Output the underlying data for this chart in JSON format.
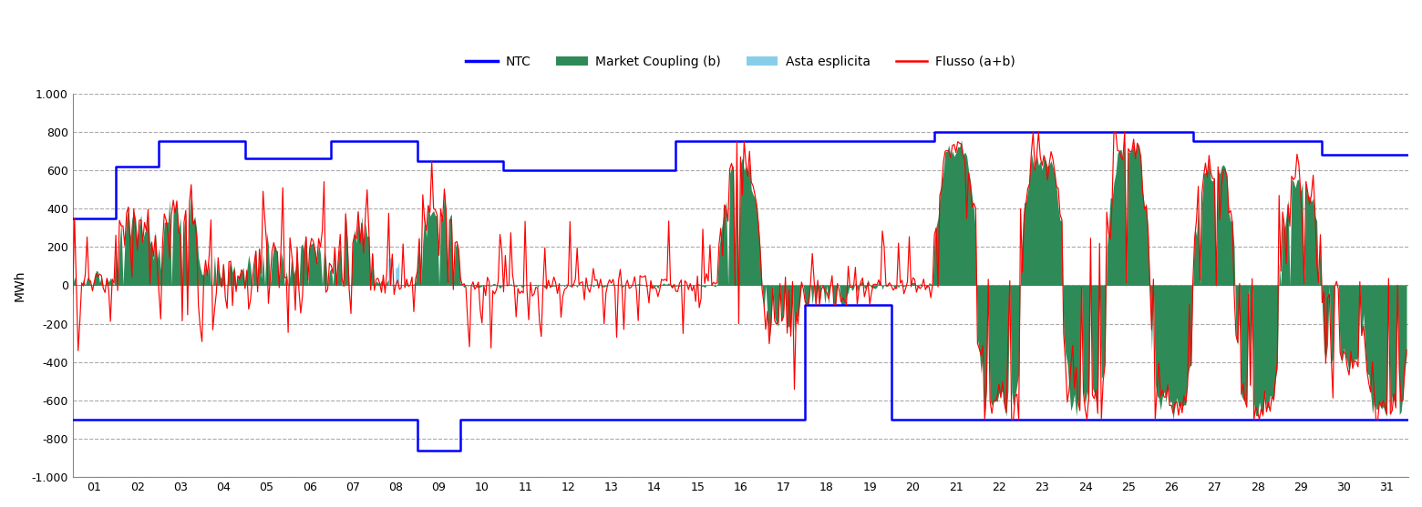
{
  "ylabel": "MWh",
  "ylim": [
    -1000,
    1000
  ],
  "yticks": [
    -1000,
    -800,
    -600,
    -400,
    -200,
    0,
    200,
    400,
    600,
    800,
    1000
  ],
  "ytick_labels": [
    "-1.000",
    "-800",
    "-600",
    "-400",
    "-200",
    "0",
    "200",
    "400",
    "600",
    "800",
    "1.000"
  ],
  "xtick_labels": [
    "01",
    "02",
    "03",
    "04",
    "05",
    "06",
    "07",
    "08",
    "09",
    "10",
    "11",
    "12",
    "13",
    "14",
    "15",
    "16",
    "17",
    "18",
    "19",
    "20",
    "21",
    "22",
    "23",
    "24",
    "25",
    "26",
    "27",
    "28",
    "29",
    "30",
    "31"
  ],
  "colors": {
    "ntc": "#0000FF",
    "market_coupling": "#2E8B57",
    "asta": "#87CEEB",
    "flusso": "#FF0000",
    "grid": "#AAAAAA",
    "background": "#FFFFFF"
  },
  "legend": {
    "ntc_label": "NTC",
    "mc_label": "Market Coupling (b)",
    "asta_label": "Asta esplicita",
    "flusso_label": "Flusso (a+b)"
  },
  "n_days": 31,
  "ntc_pos": [
    350,
    620,
    750,
    750,
    660,
    660,
    750,
    750,
    650,
    650,
    600,
    600,
    600,
    600,
    750,
    750,
    750,
    750,
    750,
    750,
    800,
    800,
    800,
    800,
    800,
    800,
    750,
    750,
    750,
    680,
    680
  ],
  "ntc_neg": [
    -700,
    -700,
    -700,
    -700,
    -700,
    -700,
    -700,
    -700,
    -860,
    -700,
    -700,
    -700,
    -700,
    -700,
    -700,
    -700,
    -700,
    -100,
    -100,
    -700,
    -700,
    -700,
    -700,
    -700,
    -700,
    -700,
    -700,
    -700,
    -700,
    -700,
    -700
  ],
  "mc_daily_mean": [
    50,
    300,
    400,
    100,
    150,
    200,
    300,
    80,
    350,
    0,
    0,
    0,
    0,
    0,
    0,
    600,
    -200,
    -300,
    -50,
    0,
    700,
    -500,
    600,
    -600,
    700,
    -600,
    600,
    -600,
    550,
    -400,
    -650
  ],
  "mc_daily_spread": [
    80,
    200,
    200,
    150,
    120,
    150,
    200,
    50,
    200,
    50,
    50,
    50,
    50,
    50,
    50,
    100,
    200,
    200,
    100,
    50,
    100,
    200,
    150,
    150,
    100,
    150,
    150,
    150,
    150,
    150,
    100
  ],
  "asta_days": [
    7
  ],
  "asta_mean": 120,
  "asta_spread": 60
}
